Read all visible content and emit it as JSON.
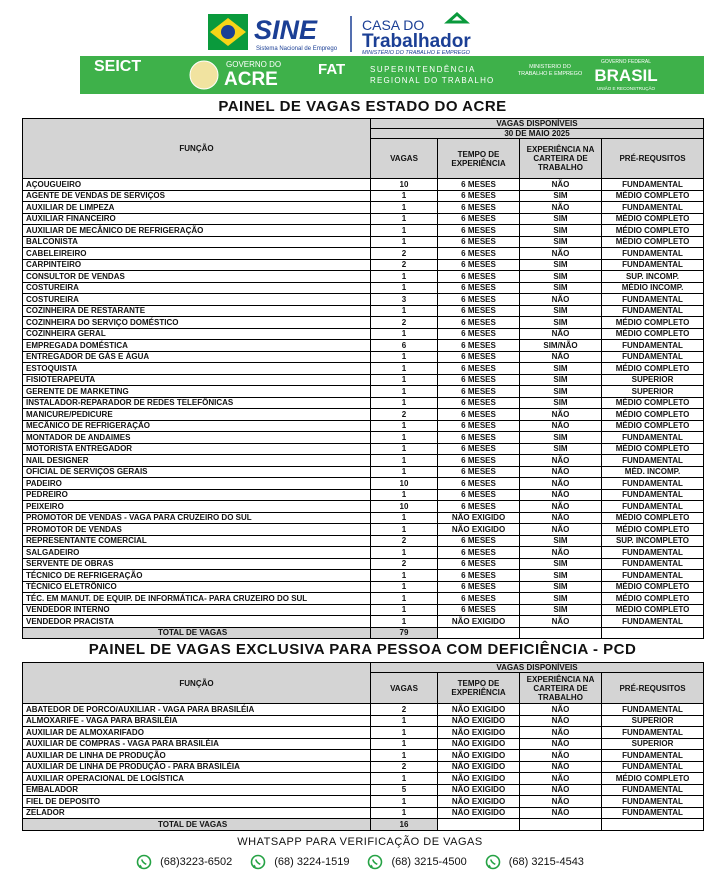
{
  "header": {
    "sine": "SINE",
    "sine_subtitle": "Sistema Nacional de Emprego",
    "casa_do": "CASA DO",
    "trabalhador": "Trabalhador",
    "ministerio": "MINISTÉRIO DO TRABALHO E EMPREGO"
  },
  "banner": {
    "seict": "SEICT",
    "governo_do": "GOVERNO DO",
    "acre": "ACRE",
    "fat": "FAT",
    "superintendencia": "SUPERINTENDÊNCIA",
    "regional": "REGIONAL DO TRABALHO",
    "ministerio": "MINISTÉRIO DO TRABALHO E EMPREGO",
    "governo_federal": "GOVERNO FEDERAL",
    "brasil": "BRASIL",
    "uniao": "UNIÃO E RECONSTRUÇÃO"
  },
  "table1": {
    "title": "PAINEL DE VAGAS ESTADO DO ACRE",
    "group": "VAGAS DISPONÍVEIS",
    "date": "30 DE MAIO 2025",
    "columns": [
      "FUNÇÃO",
      "VAGAS",
      "TEMPO DE EXPERIÊNCIA",
      "EXPERIÊNCIA NA CARTEIRA DE TRABALHO",
      "PRÉ-REQUSITOS"
    ],
    "rows": [
      [
        "AÇOUGUEIRO",
        10,
        "6 MESES",
        "NÃO",
        "FUNDAMENTAL"
      ],
      [
        "AGENTE DE VENDAS  DE SERVIÇOS",
        1,
        "6 MESES",
        "SIM",
        "MÉDIO COMPLETO"
      ],
      [
        "AUXILIAR DE LIMPEZA",
        1,
        "6 MESES",
        "NÃO",
        "FUNDAMENTAL"
      ],
      [
        "AUXILIAR FINANCEIRO",
        1,
        "6 MESES",
        "SIM",
        "MÉDIO COMPLETO"
      ],
      [
        "AUXILIAR DE MECÂNICO DE REFRIGERAÇÃO",
        1,
        "6 MESES",
        "SIM",
        "MÉDIO COMPLETO"
      ],
      [
        "BALCONISTA",
        1,
        "6 MESES",
        "SIM",
        "MÉDIO COMPLETO"
      ],
      [
        "CABELEIREIRO",
        2,
        "6 MESES",
        "NÃO",
        "FUNDAMENTAL"
      ],
      [
        "CARPINTEIRO",
        2,
        "6 MESES",
        "SIM",
        "FUNDAMENTAL"
      ],
      [
        "CONSULTOR DE VENDAS",
        1,
        "6 MESES",
        "SIM",
        "SUP. INCOMP."
      ],
      [
        "COSTUREIRA",
        1,
        "6 MESES",
        "SIM",
        "MÉDIO INCOMP."
      ],
      [
        "COSTUREIRA",
        3,
        "6 MESES",
        "NÃO",
        "FUNDAMENTAL"
      ],
      [
        "COZINHEIRA DE RESTARANTE",
        1,
        "6 MESES",
        "SIM",
        "FUNDAMENTAL"
      ],
      [
        "COZINHEIRA DO SERVIÇO DOMÉSTICO",
        2,
        "6 MESES",
        "SIM",
        "MÉDIO COMPLETO"
      ],
      [
        "COZINHEIRA GERAL",
        1,
        "6 MESES",
        "NÃO",
        "MÉDIO COMPLETO"
      ],
      [
        "EMPREGADA DOMÉSTICA",
        6,
        "6 MESES",
        "SIM/NÃO",
        "FUNDAMENTAL"
      ],
      [
        "ENTREGADOR DE GÁS E ÁGUA",
        1,
        "6 MESES",
        "NÃO",
        "FUNDAMENTAL"
      ],
      [
        "ESTOQUISTA",
        1,
        "6 MESES",
        "SIM",
        "MÉDIO COMPLETO"
      ],
      [
        "FISIOTERAPEUTA",
        1,
        "6 MESES",
        "SIM",
        "SUPERIOR"
      ],
      [
        "GERENTE DE MARKETING",
        1,
        "6 MESES",
        "SIM",
        "SUPERIOR"
      ],
      [
        "INSTALADOR-REPARADOR DE REDES TELEFÔNICAS",
        1,
        "6 MESES",
        "SIM",
        "MÉDIO COMPLETO"
      ],
      [
        "MANICURE/PEDICURE",
        2,
        "6 MESES",
        "NÃO",
        "MÉDIO COMPLETO"
      ],
      [
        "MECÂNICO DE REFRIGERAÇÃO",
        1,
        "6 MESES",
        "NÃO",
        "MÉDIO COMPLETO"
      ],
      [
        "MONTADOR DE ANDAIMES",
        1,
        "6 MESES",
        "SIM",
        "FUNDAMENTAL"
      ],
      [
        "MOTORISTA ENTREGADOR",
        1,
        "6 MESES",
        "SIM",
        "MÉDIO COMPLETO"
      ],
      [
        "NAIL DESIGNER",
        1,
        "6 MESES",
        "NÃO",
        "FUNDAMENTAL"
      ],
      [
        "OFICIAL DE SERVIÇOS  GERAIS",
        1,
        "6 MESES",
        "NÃO",
        "MÉD. INCOMP."
      ],
      [
        "PADEIRO",
        10,
        "6 MESES",
        "NÃO",
        "FUNDAMENTAL"
      ],
      [
        "PEDREIRO",
        1,
        "6 MESES",
        "NÃO",
        "FUNDAMENTAL"
      ],
      [
        "PEIXEIRO",
        10,
        "6 MESES",
        "NÃO",
        "FUNDAMENTAL"
      ],
      [
        "PROMOTOR DE VENDAS - VAGA PARA CRUZEIRO DO SUL",
        1,
        "NÃO EXIGIDO",
        "NÃO",
        "MÉDIO COMPLETO"
      ],
      [
        "PROMOTOR DE VENDAS",
        1,
        "NÃO EXIGIDO",
        "NÃO",
        "MÉDIO COMPLETO"
      ],
      [
        "REPRESENTANTE COMERCIAL",
        2,
        "6 MESES",
        "SIM",
        "SUP. INCOMPLETO"
      ],
      [
        "SALGADEIRO",
        1,
        "6 MESES",
        "NÃO",
        "FUNDAMENTAL"
      ],
      [
        "SERVENTE DE OBRAS",
        2,
        "6 MESES",
        "SIM",
        "FUNDAMENTAL"
      ],
      [
        "TÉCNICO DE REFRIGERAÇÃO",
        1,
        "6 MESES",
        "SIM",
        "FUNDAMENTAL"
      ],
      [
        "TÉCNICO ELETRÔNICO",
        1,
        "6 MESES",
        "SIM",
        "MÉDIO COMPLETO"
      ],
      [
        "TÉC. EM MANUT. DE EQUIP. DE INFORMÁTICA- PARA CRUZEIRO DO SUL",
        1,
        "6 MESES",
        "SIM",
        "MÉDIO COMPLETO"
      ],
      [
        "VENDEDOR INTERNO",
        1,
        "6 MESES",
        "SIM",
        "MÉDIO COMPLETO"
      ],
      [
        "VENDEDOR PRACISTA",
        1,
        "NÃO EXIGIDO",
        "NÃO",
        "FUNDAMENTAL"
      ]
    ],
    "total_label": "TOTAL DE VAGAS",
    "total": 79
  },
  "table2": {
    "title": "PAINEL DE VAGAS EXCLUSIVA PARA PESSOA COM DEFICIÊNCIA - PCD",
    "group": "VAGAS DISPONÍVEIS",
    "columns": [
      "FUNÇÃO",
      "VAGAS",
      "TEMPO DE EXPERIÊNCIA",
      "EXPERIÊNCIA NA CARTEIRA DE TRABALHO",
      "PRÉ-REQUSITOS"
    ],
    "rows": [
      [
        "ABATEDOR DE PORCO/AUXILIAR - VAGA PARA BRASILÉIA",
        2,
        "NÃO EXIGIDO",
        "NÃO",
        "FUNDAMENTAL"
      ],
      [
        "ALMOXARIFE - VAGA PARA BRASILÉIA",
        1,
        "NÃO EXIGIDO",
        "NÃO",
        "SUPERIOR"
      ],
      [
        "AUXILIAR DE ALMOXARIFADO",
        1,
        "NÃO EXIGIDO",
        "NÃO",
        "FUNDAMENTAL"
      ],
      [
        "AUXILIAR DE COMPRAS - VAGA PARA BRASILÉIA",
        1,
        "NÃO EXIGIDO",
        "NÃO",
        "SUPERIOR"
      ],
      [
        "AUXILIAR DE LINHA DE PRODUÇÃO",
        1,
        "NÃO EXIGIDO",
        "NÃO",
        "FUNDAMENTAL"
      ],
      [
        "AUXILIAR DE LINHA DE PRODUÇÃO -  PARA BRASILÉIA",
        2,
        "NÃO EXIGIDO",
        "NÃO",
        "FUNDAMENTAL"
      ],
      [
        "AUXILIAR OPERACIONAL DE LOGÍSTICA",
        1,
        "NÃO EXIGIDO",
        "NÃO",
        "MÉDIO COMPLETO"
      ],
      [
        "EMBALADOR",
        5,
        "NÃO EXIGIDO",
        "NÃO",
        "FUNDAMENTAL"
      ],
      [
        "FIEL DE DEPOSITO",
        1,
        "NÃO EXIGIDO",
        "NÃO",
        "FUNDAMENTAL"
      ],
      [
        "ZELADOR",
        1,
        "NÃO EXIGIDO",
        "NÃO",
        "FUNDAMENTAL"
      ]
    ],
    "total_label": "TOTAL DE VAGAS",
    "total": 16
  },
  "footer": {
    "title": "WHATSAPP PARA VERIFICAÇÃO DE VAGAS",
    "phones": [
      "(68)3223-6502",
      "(68) 3224-1519",
      "(68) 3215-4500",
      "(68) 3215-4543"
    ]
  }
}
